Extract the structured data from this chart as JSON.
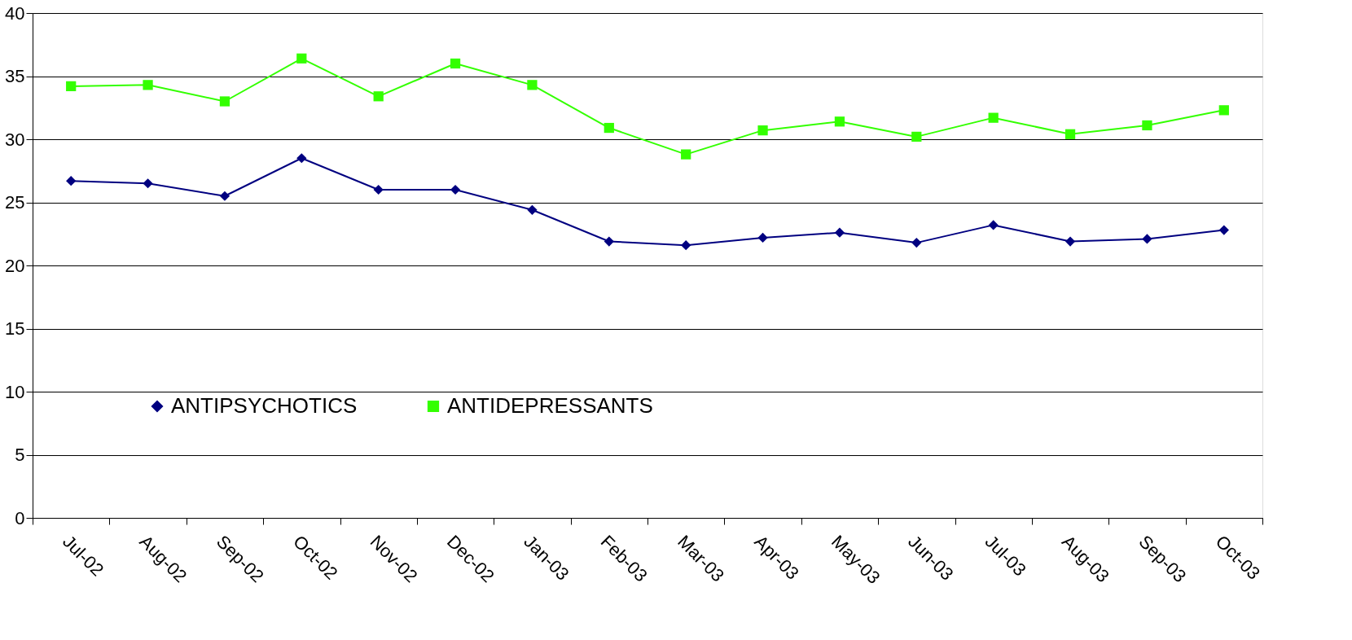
{
  "chart_data": {
    "type": "line",
    "categories": [
      "Jul-02",
      "Aug-02",
      "Sep-02",
      "Oct-02",
      "Nov-02",
      "Dec-02",
      "Jan-03",
      "Feb-03",
      "Mar-03",
      "Apr-03",
      "May-03",
      "Jun-03",
      "Jul-03",
      "Aug-03",
      "Sep-03",
      "Oct-03"
    ],
    "series": [
      {
        "name": "ANTIPSYCHOTICS",
        "color": "#000080",
        "marker": "diamond",
        "values": [
          26.7,
          26.5,
          25.5,
          28.5,
          26.0,
          26.0,
          24.4,
          21.9,
          21.6,
          22.2,
          22.6,
          21.8,
          23.2,
          21.9,
          22.1,
          22.8
        ]
      },
      {
        "name": "ANTIDEPRESSANTS",
        "color": "#33ff00",
        "marker": "square",
        "values": [
          34.2,
          34.3,
          33.0,
          36.4,
          33.4,
          36.0,
          34.3,
          30.9,
          28.8,
          30.7,
          31.4,
          30.2,
          31.7,
          30.4,
          31.1,
          32.3
        ]
      }
    ],
    "ylim": [
      0,
      40
    ],
    "yticks": [
      0,
      5,
      10,
      15,
      20,
      25,
      30,
      35,
      40
    ],
    "grid": "y",
    "legend": "bottom left"
  }
}
